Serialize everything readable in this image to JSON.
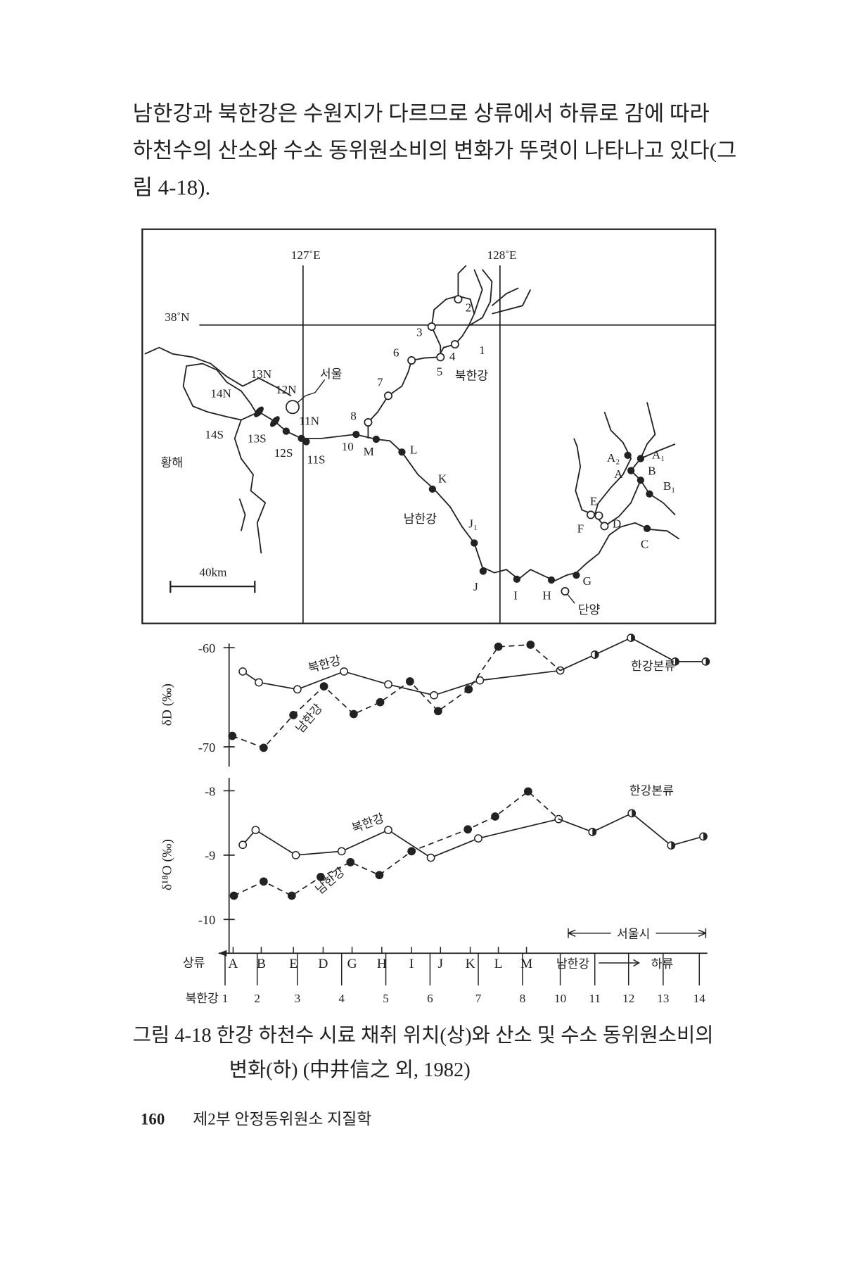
{
  "paragraph": [
    "남한강과 북한강은 수원지가 다르므로 상류에서 하류로 감에 따라",
    "하천수의 산소와 수소 동위원소비의 변화가 뚜렷이 나타나고 있다(그",
    "림 4-18)."
  ],
  "map": {
    "labels": [
      "127˚E",
      "128˚E",
      "38˚N",
      "1",
      "2",
      "3",
      "4",
      "5",
      "6",
      "7",
      "8",
      "10",
      "M",
      "L",
      "K",
      "J₁",
      "J",
      "I",
      "H",
      "G",
      "북한강",
      "서울",
      "13N",
      "12N",
      "14N",
      "11N",
      "14S",
      "13S",
      "12S",
      "11S",
      "황해",
      "남한강",
      "단양",
      "40km",
      "A₂",
      "A₁",
      "A",
      "B",
      "B₁",
      "E",
      "F",
      "D",
      "C"
    ]
  },
  "charts": [
    {
      "y_label": "δD (‰)",
      "ylim": [
        -72,
        -59.5
      ],
      "yticks": [
        -60,
        -70
      ],
      "series": [
        {
          "name": "북한강",
          "marker": "open",
          "line": "solid",
          "values": [
            -62.4,
            -63.5,
            -64.2,
            -62.4,
            -63.7,
            -64.8,
            -63.3,
            -62.3
          ]
        },
        {
          "name": "남한강",
          "marker": "filled",
          "line": "dashed",
          "values": [
            -68.9,
            -70.1,
            -66.8,
            -63.9,
            -66.7,
            -65.5,
            -63.4,
            -66.4,
            -64.2,
            -59.9,
            -59.7
          ]
        },
        {
          "name": "한강본류",
          "marker": "half",
          "line": "solid",
          "values": [
            -60.7,
            -59.0,
            -61.4,
            -61.4
          ]
        }
      ]
    },
    {
      "y_label": "δ¹⁸O (‰)",
      "ylim": [
        -10.5,
        -7.8
      ],
      "yticks": [
        -8,
        -9,
        -10
      ],
      "series": [
        {
          "name": "북한강",
          "marker": "open",
          "line": "solid",
          "values": [
            -8.84,
            -8.61,
            -9.0,
            -8.94,
            -8.61,
            -9.04,
            -8.74,
            -8.44
          ]
        },
        {
          "name": "남한강",
          "marker": "filled",
          "line": "dashed",
          "values": [
            -9.63,
            -9.41,
            -9.63,
            -9.34,
            -9.11,
            -9.31,
            -8.94,
            -8.6,
            -8.4,
            -8.01
          ]
        },
        {
          "name": "한강본류",
          "marker": "half",
          "line": "solid",
          "values": [
            -8.64,
            -8.35,
            -8.85,
            -8.71
          ]
        }
      ]
    }
  ],
  "axis": {
    "upstream": "상류",
    "south_name": "남한강",
    "downstream": "하류",
    "north_name": "북한강",
    "seoul": "서울시",
    "south": [
      "A",
      "B",
      "E",
      "D",
      "G",
      "H",
      "I",
      "J",
      "K",
      "L",
      "M"
    ],
    "north": [
      "1",
      "2",
      "3",
      "4",
      "5",
      "6",
      "7",
      "8",
      "10",
      "11",
      "12",
      "13",
      "14"
    ]
  },
  "caption": [
    "그림 4-18  한강 하천수 시료 채취 위치(상)와 산소 및 수소 동위원소비의",
    "변화(하) (中井信之 외, 1982)"
  ],
  "footer": {
    "page": "160",
    "part": "제2부  안정동위원소 지질학"
  }
}
